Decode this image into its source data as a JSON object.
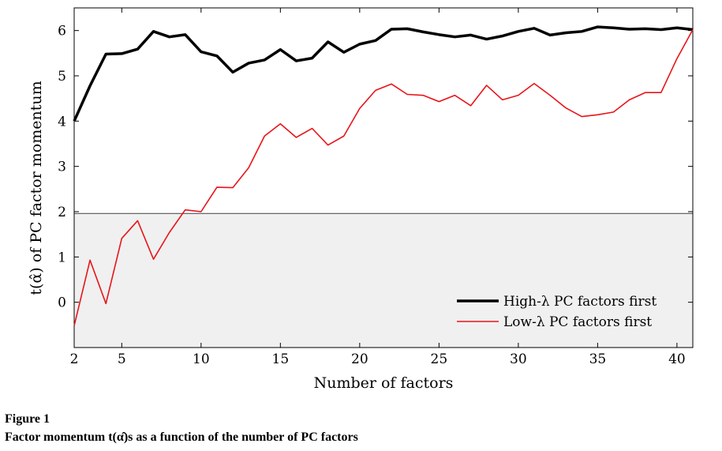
{
  "chart_data": {
    "type": "line",
    "xlabel": "Number of factors",
    "ylabel": "t(α̂) of PC factor momentum",
    "xlim": [
      2,
      41
    ],
    "ylim": [
      -1,
      6.5
    ],
    "x_ticks": [
      2,
      5,
      10,
      15,
      20,
      25,
      30,
      35,
      40
    ],
    "y_ticks": [
      0,
      1,
      2,
      3,
      4,
      5,
      6
    ],
    "shaded_region": {
      "y_from": -1,
      "y_to": 1.96
    },
    "threshold_line": 1.96,
    "legend_position": "bottom-right",
    "x": [
      2,
      3,
      4,
      5,
      6,
      7,
      8,
      9,
      10,
      11,
      12,
      13,
      14,
      15,
      16,
      17,
      18,
      19,
      20,
      21,
      22,
      23,
      24,
      25,
      26,
      27,
      28,
      29,
      30,
      31,
      32,
      33,
      34,
      35,
      36,
      37,
      38,
      39,
      40,
      41
    ],
    "series": [
      {
        "name": "High-λ PC factors first",
        "color": "#000000",
        "values": [
          4.0,
          4.78,
          5.48,
          5.49,
          5.59,
          5.98,
          5.86,
          5.91,
          5.53,
          5.44,
          5.08,
          5.28,
          5.35,
          5.58,
          5.33,
          5.39,
          5.75,
          5.52,
          5.7,
          5.78,
          6.03,
          6.04,
          5.97,
          5.91,
          5.86,
          5.9,
          5.81,
          5.88,
          5.98,
          6.05,
          5.9,
          5.95,
          5.98,
          6.08,
          6.06,
          6.03,
          6.04,
          6.02,
          6.06,
          6.02
        ]
      },
      {
        "name": "Low-λ PC factors first",
        "color": "#e8141a",
        "values": [
          -0.52,
          0.93,
          -0.03,
          1.41,
          1.8,
          0.95,
          1.54,
          2.04,
          2.0,
          2.54,
          2.53,
          2.97,
          3.67,
          3.94,
          3.64,
          3.84,
          3.47,
          3.67,
          4.28,
          4.68,
          4.82,
          4.59,
          4.57,
          4.43,
          4.57,
          4.34,
          4.79,
          4.47,
          4.57,
          4.83,
          4.57,
          4.29,
          4.1,
          4.14,
          4.2,
          4.47,
          4.63,
          4.63,
          5.38,
          6.02
        ]
      }
    ]
  },
  "caption": {
    "label": "Figure 1",
    "title": "Factor momentum t(α̂)s as a function of the number of PC factors"
  }
}
